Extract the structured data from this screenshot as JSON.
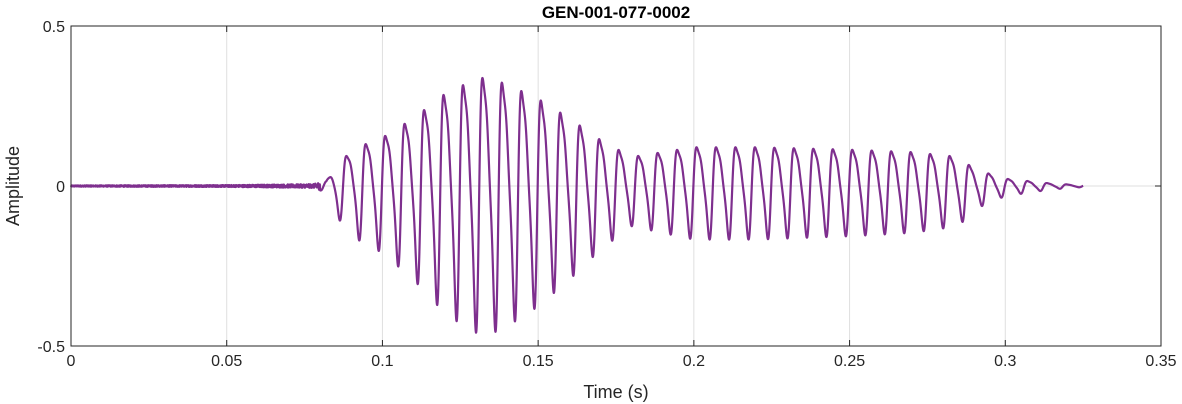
{
  "chart_data": {
    "type": "line",
    "title": "GEN-001-077-0002",
    "xlabel": "Time (s)",
    "ylabel": "Amplitude",
    "xlim": [
      0,
      0.35
    ],
    "ylim": [
      -0.5,
      0.5
    ],
    "x_ticks": [
      0,
      0.05,
      0.1,
      0.15,
      0.2,
      0.25,
      0.3,
      0.35
    ],
    "x_tick_labels": [
      "0",
      "0.05",
      "0.1",
      "0.15",
      "0.2",
      "0.25",
      "0.3",
      "0.35"
    ],
    "y_ticks": [
      -0.5,
      0,
      0.5
    ],
    "y_tick_labels": [
      "-0.5",
      "0",
      "0.5"
    ],
    "grid": true,
    "line_color": "#7E2F8E",
    "series": [
      {
        "envelope_points": [
          [
            0.0,
            0.002
          ],
          [
            0.05,
            0.003
          ],
          [
            0.078,
            0.006
          ],
          [
            0.082,
            0.02
          ],
          [
            0.085,
            0.09
          ],
          [
            0.092,
            0.16
          ],
          [
            0.1,
            0.2
          ],
          [
            0.11,
            0.28
          ],
          [
            0.12,
            0.38
          ],
          [
            0.128,
            0.43
          ],
          [
            0.133,
            0.45
          ],
          [
            0.14,
            0.42
          ],
          [
            0.15,
            0.36
          ],
          [
            0.16,
            0.28
          ],
          [
            0.17,
            0.19
          ],
          [
            0.18,
            0.12
          ],
          [
            0.19,
            0.14
          ],
          [
            0.2,
            0.16
          ],
          [
            0.22,
            0.16
          ],
          [
            0.25,
            0.15
          ],
          [
            0.27,
            0.14
          ],
          [
            0.285,
            0.12
          ],
          [
            0.29,
            0.07
          ],
          [
            0.3,
            0.03
          ],
          [
            0.315,
            0.01
          ],
          [
            0.325,
            0.003
          ]
        ],
        "frequency_hz": 160
      }
    ]
  }
}
